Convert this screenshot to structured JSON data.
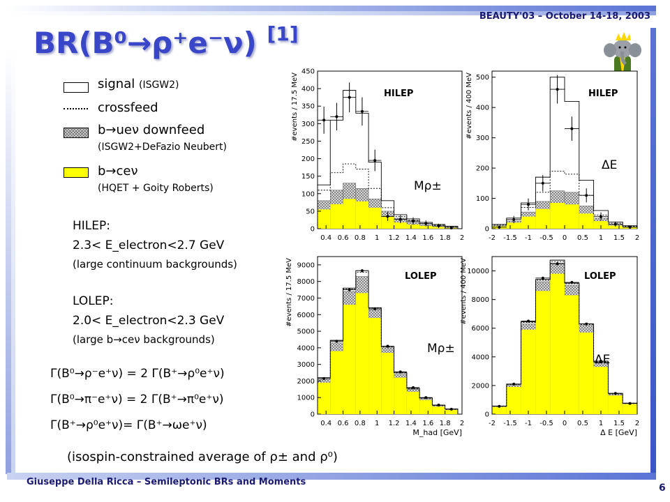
{
  "header": {
    "conference": "BEAUTY'03 – October 14-18, 2003"
  },
  "title": {
    "main": "BR(B⁰→ρ⁺e⁻ν)",
    "ref": "[1]"
  },
  "legend": {
    "signal": "signal",
    "signal_model": "(ISGW2)",
    "crossfeed": "crossfeed",
    "downfeed": "b→ueν  downfeed",
    "downfeed_model": "(ISGW2+DeFazio Neubert)",
    "bce": "b→ceν",
    "bce_model": "(HQET + Goity Roberts)"
  },
  "hilep": {
    "label": "HILEP:",
    "range": "2.3< E_electron<2.7 GeV",
    "note": "(large continuum backgrounds)"
  },
  "lolep": {
    "label": "LOLEP:",
    "range": "2.0< E_electron<2.3 GeV",
    "note": "(large b→ceν backgrounds)"
  },
  "formulas": [
    "Γ(B⁰→ρ⁻e⁺ν) = 2 Γ(B⁺→ρ⁰e⁺ν)",
    "Γ(B⁰→π⁻e⁺ν) = 2 Γ(B⁺→π⁰e⁺ν)",
    "Γ(B⁺→ρ⁰e⁺ν)= Γ(B⁺→ωe⁺ν)"
  ],
  "isospin_note": "(isospin-constrained average of ρ± and ρ⁰)",
  "footer": {
    "text": "Giuseppe Della Ricca – Semileptonic BRs and Moments",
    "page": "6"
  },
  "colors": {
    "title": "#3a46c8",
    "bce_fill": "#ffff00",
    "bars": "#5a74d4"
  },
  "chart_data": [
    {
      "type": "bar",
      "panel": "HILEP",
      "variable": "Mρ±",
      "ylabel": "#events / 17.5 MeV",
      "xlim": [
        0.3,
        2
      ],
      "ylim": [
        0,
        450
      ],
      "x_ticks": [
        0.4,
        0.6,
        0.8,
        1,
        1.2,
        1.4,
        1.6,
        1.8,
        2
      ],
      "y_ticks": [
        0,
        50,
        100,
        150,
        200,
        250,
        300,
        350,
        400,
        450
      ],
      "bin_edges": [
        0.3,
        0.45,
        0.6,
        0.75,
        0.9,
        1.05,
        1.2,
        1.35,
        1.5,
        1.65,
        1.8,
        1.95
      ],
      "series": [
        {
          "name": "b→ceν",
          "values": [
            55,
            70,
            85,
            78,
            60,
            35,
            18,
            12,
            8,
            5,
            3
          ]
        },
        {
          "name": "b→ueν downfeed",
          "values": [
            80,
            110,
            130,
            115,
            85,
            50,
            30,
            20,
            12,
            8,
            5
          ]
        },
        {
          "name": "crossfeed",
          "values": [
            110,
            160,
            185,
            170,
            115,
            60,
            35,
            24,
            15,
            10,
            6
          ]
        },
        {
          "name": "signal",
          "values": [
            125,
            310,
            395,
            330,
            190,
            80,
            40,
            28,
            18,
            12,
            7
          ]
        }
      ],
      "data_points": [
        310,
        320,
        375,
        335,
        195,
        35,
        27,
        22,
        15,
        8,
        2
      ]
    },
    {
      "type": "bar",
      "panel": "HILEP",
      "variable": "ΔE",
      "ylabel": "#events / 400 MeV",
      "xlim": [
        -2,
        2
      ],
      "ylim": [
        0,
        520
      ],
      "x_ticks": [
        -2,
        -1.5,
        -1,
        -0.5,
        0,
        0.5,
        1,
        1.5,
        2
      ],
      "y_ticks": [
        0,
        100,
        200,
        300,
        400,
        500
      ],
      "bin_edges": [
        -2,
        -1.6,
        -1.2,
        -0.8,
        -0.4,
        0,
        0.4,
        0.8,
        1.2,
        1.6,
        2
      ],
      "series": [
        {
          "name": "b→ceν",
          "values": [
            8,
            20,
            40,
            65,
            85,
            80,
            50,
            25,
            10,
            5
          ]
        },
        {
          "name": "b→ueν downfeed",
          "values": [
            10,
            25,
            55,
            90,
            125,
            120,
            75,
            35,
            14,
            6
          ]
        },
        {
          "name": "crossfeed",
          "values": [
            12,
            30,
            70,
            120,
            190,
            180,
            110,
            45,
            18,
            8
          ]
        },
        {
          "name": "signal",
          "values": [
            14,
            35,
            85,
            170,
            500,
            420,
            160,
            60,
            22,
            10
          ]
        }
      ],
      "data_points": [
        5,
        30,
        80,
        150,
        460,
        330,
        110,
        40,
        15,
        5
      ]
    },
    {
      "type": "bar",
      "panel": "LOLEP",
      "variable": "Mρ±",
      "ylabel": "#events / 17.5 MeV",
      "xlabel": "M_had [GeV]",
      "xlim": [
        0.3,
        2
      ],
      "ylim": [
        0,
        9500
      ],
      "x_ticks": [
        0.4,
        0.6,
        0.8,
        1,
        1.2,
        1.4,
        1.6,
        1.8,
        2
      ],
      "y_ticks": [
        0,
        1000,
        2000,
        3000,
        4000,
        5000,
        6000,
        7000,
        8000,
        9000
      ],
      "bin_edges": [
        0.3,
        0.45,
        0.6,
        0.75,
        0.9,
        1.05,
        1.2,
        1.35,
        1.5,
        1.65,
        1.8,
        1.95
      ],
      "series": [
        {
          "name": "b→ceν",
          "values": [
            1900,
            3800,
            6600,
            7300,
            5800,
            3700,
            2200,
            1350,
            850,
            450,
            250
          ]
        },
        {
          "name": "b→ueν downfeed",
          "values": [
            2100,
            4300,
            7400,
            8300,
            6300,
            4000,
            2450,
            1500,
            950,
            520,
            290
          ]
        },
        {
          "name": "crossfeed",
          "values": [
            2150,
            4400,
            7550,
            8550,
            6400,
            4050,
            2500,
            1540,
            970,
            530,
            300
          ]
        },
        {
          "name": "signal",
          "values": [
            2200,
            4450,
            7600,
            8650,
            6420,
            4080,
            2520,
            1560,
            980,
            540,
            310
          ]
        }
      ],
      "data_points": [
        2150,
        4400,
        7500,
        8650,
        6350,
        4100,
        2550,
        1600,
        1000,
        550,
        300
      ]
    },
    {
      "type": "bar",
      "panel": "LOLEP",
      "variable": "ΔE",
      "ylabel": "#events / 400 MeV",
      "xlabel": "Δ E  [GeV]",
      "xlim": [
        -2,
        2
      ],
      "ylim": [
        0,
        11000
      ],
      "x_ticks": [
        -2,
        -1.5,
        -1,
        -0.5,
        0,
        0.5,
        1,
        1.5,
        2
      ],
      "y_ticks": [
        0,
        2000,
        4000,
        6000,
        8000,
        10000
      ],
      "bin_edges": [
        -2,
        -1.6,
        -1.2,
        -0.8,
        -0.4,
        0,
        0.4,
        0.8,
        1.2,
        1.6,
        2
      ],
      "series": [
        {
          "name": "b→ceν",
          "values": [
            500,
            1900,
            5900,
            8600,
            9800,
            8300,
            5700,
            3300,
            1300,
            700
          ]
        },
        {
          "name": "b→ueν downfeed",
          "values": [
            550,
            2050,
            6300,
            9250,
            10550,
            9000,
            6200,
            3600,
            1400,
            750
          ]
        },
        {
          "name": "crossfeed",
          "values": [
            560,
            2080,
            6400,
            9350,
            10650,
            9100,
            6250,
            3650,
            1420,
            760
          ]
        },
        {
          "name": "signal",
          "values": [
            570,
            2100,
            6450,
            9400,
            10750,
            9150,
            6300,
            3700,
            1450,
            770
          ]
        }
      ],
      "data_points": [
        550,
        2100,
        6500,
        9500,
        10500,
        9200,
        6300,
        3700,
        1450,
        750
      ]
    }
  ],
  "panel_titles": {
    "hilep": "HILEP",
    "lolep": "LOLEP",
    "mrho": "Mρ±",
    "de": "ΔE"
  }
}
